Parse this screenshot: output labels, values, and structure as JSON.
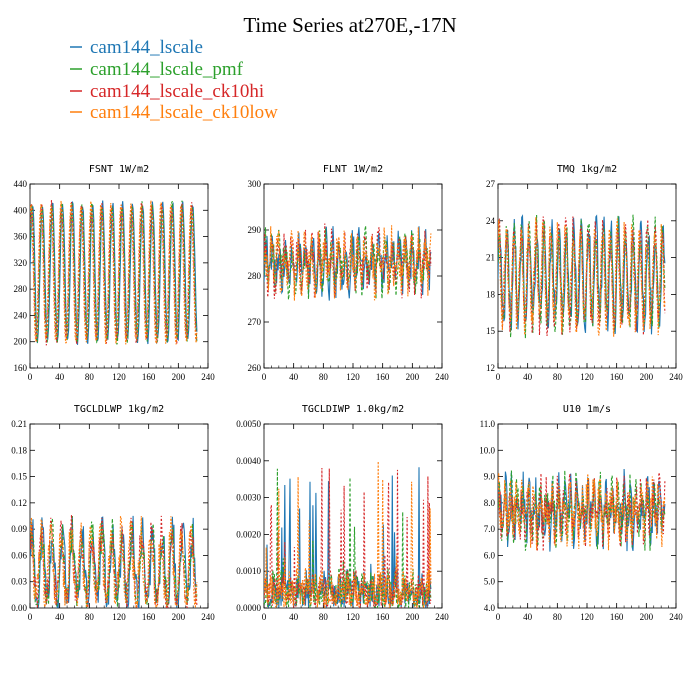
{
  "figure": {
    "title": "Time Series at270E,-17N",
    "legend": [
      {
        "name": "cam144_lscale",
        "color": "#1f77b4"
      },
      {
        "name": "cam144_lscale_pmf",
        "color": "#2ca02c"
      },
      {
        "name": "cam144_lscale_ck10hi",
        "color": "#d62728"
      },
      {
        "name": "cam144_lscale_ck10low",
        "color": "#ff7f0e"
      }
    ]
  },
  "chart_data": [
    {
      "type": "line",
      "title": "FSNT  1W/m2",
      "xlim": [
        0,
        240
      ],
      "xticks": [
        "0",
        "40",
        "80",
        "120",
        "160",
        "200",
        "240"
      ],
      "ylim": [
        160,
        440
      ],
      "yticks": [
        "160",
        "200",
        "240",
        "280",
        "320",
        "360",
        "400",
        "440"
      ],
      "pattern": {
        "n": 225,
        "mean": 305,
        "amp": 105,
        "period": 13.5,
        "noise": 6,
        "min": 170,
        "max": 425
      },
      "series": [
        {
          "name": "cam144_lscale",
          "color": "#1f77b4"
        },
        {
          "name": "cam144_lscale_pmf",
          "color": "#2ca02c"
        },
        {
          "name": "cam144_lscale_ck10hi",
          "color": "#d62728"
        },
        {
          "name": "cam144_lscale_ck10low",
          "color": "#ff7f0e"
        }
      ]
    },
    {
      "type": "line",
      "title": "FLNT  1W/m2",
      "xlim": [
        0,
        240
      ],
      "xticks": [
        "0",
        "40",
        "80",
        "120",
        "160",
        "200",
        "240"
      ],
      "ylim": [
        260,
        300
      ],
      "yticks": [
        "260",
        "270",
        "280",
        "290",
        "300"
      ],
      "pattern": {
        "n": 225,
        "mean": 283,
        "amp": 4,
        "period": 9,
        "noise": 4.5,
        "min": 262,
        "max": 299
      },
      "series": [
        {
          "name": "cam144_lscale",
          "color": "#1f77b4"
        },
        {
          "name": "cam144_lscale_pmf",
          "color": "#2ca02c"
        },
        {
          "name": "cam144_lscale_ck10hi",
          "color": "#d62728"
        },
        {
          "name": "cam144_lscale_ck10low",
          "color": "#ff7f0e"
        }
      ]
    },
    {
      "type": "line",
      "title": "TMQ  1kg/m2",
      "xlim": [
        0,
        240
      ],
      "xticks": [
        "0",
        "40",
        "80",
        "120",
        "160",
        "200",
        "240"
      ],
      "ylim": [
        12,
        27
      ],
      "yticks": [
        "12",
        "15",
        "18",
        "21",
        "24",
        "27"
      ],
      "pattern": {
        "n": 225,
        "mean": 19.5,
        "amp": 3.8,
        "period": 10,
        "noise": 1.3,
        "min": 13.5,
        "max": 26.5
      },
      "series": [
        {
          "name": "cam144_lscale",
          "color": "#1f77b4"
        },
        {
          "name": "cam144_lscale_pmf",
          "color": "#2ca02c"
        },
        {
          "name": "cam144_lscale_ck10hi",
          "color": "#d62728"
        },
        {
          "name": "cam144_lscale_ck10low",
          "color": "#ff7f0e"
        }
      ]
    },
    {
      "type": "line",
      "title": "TGCLDLWP  1kg/m2",
      "xlim": [
        0,
        240
      ],
      "xticks": [
        "0",
        "40",
        "80",
        "120",
        "160",
        "200",
        "240"
      ],
      "ylim": [
        0,
        0.21
      ],
      "yticks": [
        "0.00",
        "0.03",
        "0.06",
        "0.09",
        "0.12",
        "0.15",
        "0.18",
        "0.21"
      ],
      "pattern": {
        "n": 225,
        "mean": 0.045,
        "amp": 0.04,
        "period": 13.5,
        "noise": 0.022,
        "min": 0.0,
        "max": 0.185
      },
      "series": [
        {
          "name": "cam144_lscale",
          "color": "#1f77b4"
        },
        {
          "name": "cam144_lscale_pmf",
          "color": "#2ca02c"
        },
        {
          "name": "cam144_lscale_ck10hi",
          "color": "#d62728"
        },
        {
          "name": "cam144_lscale_ck10low",
          "color": "#ff7f0e"
        }
      ]
    },
    {
      "type": "line",
      "title": "TGCLDIWP  1.0kg/m2",
      "xlim": [
        0,
        240
      ],
      "xticks": [
        "0",
        "40",
        "80",
        "120",
        "160",
        "200",
        "240"
      ],
      "ylim": [
        0,
        0.005
      ],
      "yticks": [
        "0.0000",
        "0.0010",
        "0.0020",
        "0.0030",
        "0.0040",
        "0.0050"
      ],
      "pattern": {
        "n": 225,
        "mean": 0.0004,
        "amp": 0.0002,
        "period": 11,
        "noise": 0.0005,
        "min": 0.0,
        "max": 0.0044,
        "spiky": true
      },
      "series": [
        {
          "name": "cam144_lscale",
          "color": "#1f77b4"
        },
        {
          "name": "cam144_lscale_pmf",
          "color": "#2ca02c"
        },
        {
          "name": "cam144_lscale_ck10hi",
          "color": "#d62728"
        },
        {
          "name": "cam144_lscale_ck10low",
          "color": "#ff7f0e"
        }
      ]
    },
    {
      "type": "line",
      "title": "U10  1m/s",
      "xlim": [
        0,
        240
      ],
      "xticks": [
        "0",
        "40",
        "80",
        "120",
        "160",
        "200",
        "240"
      ],
      "ylim": [
        4.0,
        11.0
      ],
      "yticks": [
        "4.0",
        "5.0",
        "6.0",
        "7.0",
        "8.0",
        "9.0",
        "10.0",
        "11.0"
      ],
      "pattern": {
        "n": 225,
        "mean": 7.7,
        "amp": 0.7,
        "period": 8,
        "noise": 0.9,
        "min": 4.8,
        "max": 10.8
      },
      "series": [
        {
          "name": "cam144_lscale",
          "color": "#1f77b4"
        },
        {
          "name": "cam144_lscale_pmf",
          "color": "#2ca02c"
        },
        {
          "name": "cam144_lscale_ck10hi",
          "color": "#d62728"
        },
        {
          "name": "cam144_lscale_ck10low",
          "color": "#ff7f0e"
        }
      ]
    }
  ]
}
